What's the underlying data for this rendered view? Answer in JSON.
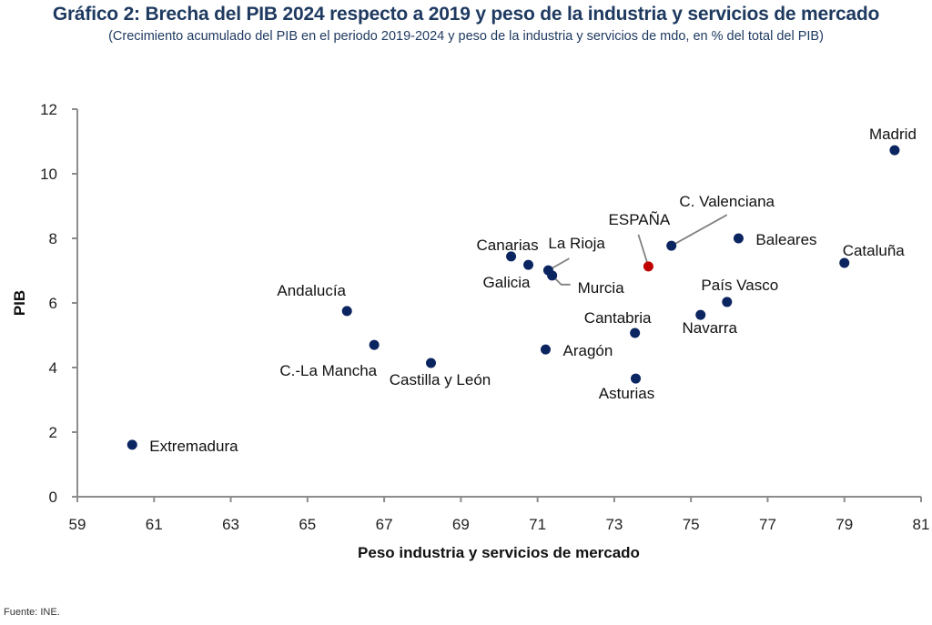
{
  "header": {
    "title": "Gráfico 2: Brecha del PIB 2024 respecto a 2019 y peso de la industria y servicios de mercado",
    "subtitle": "(Crecimiento acumulado del PIB en el periodo 2019-2024 y peso de la industria y servicios de mdo, en % del total del PIB)"
  },
  "footer": {
    "source": "Fuente: INE."
  },
  "colors": {
    "point": "#0b2560",
    "highlight": "#c00000",
    "axis": "#8c8c8c",
    "leader": "#808080",
    "title": "#1f3a60"
  },
  "chart_data": {
    "type": "scatter",
    "title": "Gráfico 2: Brecha del PIB 2024 respecto a 2019 y peso de la industria y servicios de mercado",
    "subtitle": "(Crecimiento acumulado del PIB en el periodo 2019-2024 y peso de la industria y servicios de mdo, en % del total del PIB)",
    "xlabel": "Peso industria y servicios de mercado",
    "ylabel": "PIB",
    "xlim": [
      59,
      81
    ],
    "ylim": [
      0,
      12
    ],
    "xticks": [
      59,
      61,
      63,
      65,
      67,
      69,
      71,
      73,
      75,
      77,
      79,
      81
    ],
    "yticks": [
      0,
      2,
      4,
      6,
      8,
      10,
      12
    ],
    "grid": false,
    "legend": "none",
    "points": [
      {
        "label": "Extremadura",
        "x": 60.43,
        "y": 1.61,
        "highlight": false,
        "label_pos": "right"
      },
      {
        "label": "Andalucía",
        "x": 66.03,
        "y": 5.75,
        "highlight": false,
        "label_pos": "above-left"
      },
      {
        "label": "C.-La Mancha",
        "x": 66.74,
        "y": 4.7,
        "highlight": false,
        "label_pos": "below-left"
      },
      {
        "label": "Castilla y León",
        "x": 68.22,
        "y": 4.14,
        "highlight": false,
        "label_pos": "below-right"
      },
      {
        "label": "Canarias",
        "x": 70.31,
        "y": 7.44,
        "highlight": false,
        "label_pos": "above"
      },
      {
        "label": "Galicia",
        "x": 70.76,
        "y": 7.18,
        "highlight": false,
        "label_pos": "below-left"
      },
      {
        "label": "La Rioja",
        "x": 71.28,
        "y": 7.01,
        "highlight": false,
        "label_pos": "leader-up-right"
      },
      {
        "label": "Murcia",
        "x": 71.38,
        "y": 6.85,
        "highlight": false,
        "label_pos": "leader-down-right"
      },
      {
        "label": "Aragón",
        "x": 71.21,
        "y": 4.56,
        "highlight": false,
        "label_pos": "right"
      },
      {
        "label": "Cantabria",
        "x": 73.54,
        "y": 5.07,
        "highlight": false,
        "label_pos": "above-left"
      },
      {
        "label": "Asturias",
        "x": 73.56,
        "y": 3.66,
        "highlight": false,
        "label_pos": "below"
      },
      {
        "label": "ESPAÑA",
        "x": 73.89,
        "y": 7.13,
        "highlight": true,
        "label_pos": "leader-up-left"
      },
      {
        "label": "C. Valenciana",
        "x": 74.49,
        "y": 7.77,
        "highlight": false,
        "label_pos": "leader-up-right"
      },
      {
        "label": "Navarra",
        "x": 75.25,
        "y": 5.63,
        "highlight": false,
        "label_pos": "below"
      },
      {
        "label": "País Vasco",
        "x": 75.94,
        "y": 6.03,
        "highlight": false,
        "label_pos": "above"
      },
      {
        "label": "Baleares",
        "x": 76.24,
        "y": 8.0,
        "highlight": false,
        "label_pos": "right"
      },
      {
        "label": "Cataluña",
        "x": 79.0,
        "y": 7.24,
        "highlight": false,
        "label_pos": "above"
      },
      {
        "label": "Madrid",
        "x": 80.31,
        "y": 10.73,
        "highlight": false,
        "label_pos": "above"
      }
    ]
  }
}
